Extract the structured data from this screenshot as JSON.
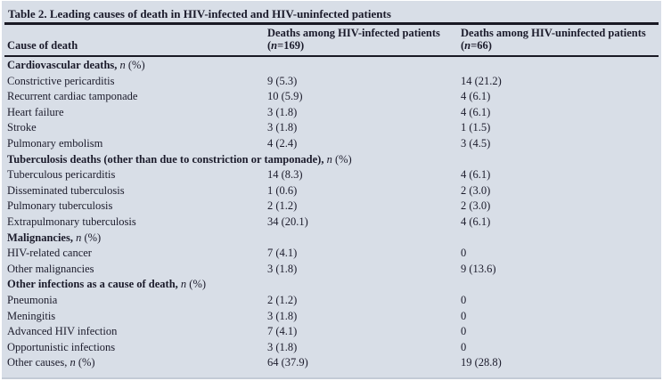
{
  "colors": {
    "panel_bg": "#d8dee7",
    "text": "#1b1b2b",
    "rule": "#191924"
  },
  "table": {
    "title": "Table 2. Leading causes of death in HIV-infected and HIV-uninfected patients",
    "columns": {
      "cause": "Cause of death",
      "infected": {
        "line1": "Deaths among HIV-infected patients",
        "pre": "(",
        "n": "n",
        "post": "=169)"
      },
      "uninfected": {
        "line1": "Deaths among HIV-uninfected patients",
        "pre": "(",
        "n": "n",
        "post": "=66)"
      }
    },
    "rows": [
      {
        "type": "section",
        "pre": "Cardiovascular deaths, ",
        "n": "n",
        "post": " (%)",
        "infected": "",
        "uninfected": ""
      },
      {
        "type": "data",
        "pre": "Constrictive pericarditis",
        "infected": "9 (5.3)",
        "uninfected": "14 (21.2)"
      },
      {
        "type": "data",
        "pre": "Recurrent cardiac tamponade",
        "infected": "10 (5.9)",
        "uninfected": "4 (6.1)"
      },
      {
        "type": "data",
        "pre": "Heart failure",
        "infected": "3 (1.8)",
        "uninfected": "4 (6.1)"
      },
      {
        "type": "data",
        "pre": "Stroke",
        "infected": "3 (1.8)",
        "uninfected": "1 (1.5)"
      },
      {
        "type": "data",
        "pre": "Pulmonary embolism",
        "infected": "4 (2.4)",
        "uninfected": "3 (4.5)"
      },
      {
        "type": "section",
        "pre": "Tuberculosis deaths (other than due to constriction or tamponade), ",
        "n": "n",
        "post": " (%)",
        "infected": "",
        "uninfected": ""
      },
      {
        "type": "data",
        "pre": "Tuberculous pericarditis",
        "infected": "14 (8.3)",
        "uninfected": "4 (6.1)"
      },
      {
        "type": "data",
        "pre": "Disseminated tuberculosis",
        "infected": "1 (0.6)",
        "uninfected": "2 (3.0)"
      },
      {
        "type": "data",
        "pre": "Pulmonary tuberculosis",
        "infected": "2 (1.2)",
        "uninfected": "2 (3.0)"
      },
      {
        "type": "data",
        "pre": "Extrapulmonary tuberculosis",
        "infected": "34 (20.1)",
        "uninfected": "4 (6.1)"
      },
      {
        "type": "section",
        "pre": "Malignancies, ",
        "n": "n",
        "post": " (%)",
        "infected": "",
        "uninfected": ""
      },
      {
        "type": "data",
        "pre": "HIV-related cancer",
        "infected": "7 (4.1)",
        "uninfected": "0"
      },
      {
        "type": "data",
        "pre": "Other malignancies",
        "infected": "3 (1.8)",
        "uninfected": "9 (13.6)"
      },
      {
        "type": "section",
        "pre": "Other infections as a cause of death, ",
        "n": "n",
        "post": " (%)",
        "infected": "",
        "uninfected": ""
      },
      {
        "type": "data",
        "pre": "Pneumonia",
        "infected": "2 (1.2)",
        "uninfected": "0"
      },
      {
        "type": "data",
        "pre": "Meningitis",
        "infected": "3 (1.8)",
        "uninfected": "0"
      },
      {
        "type": "data",
        "pre": "Advanced HIV infection",
        "infected": "7 (4.1)",
        "uninfected": "0"
      },
      {
        "type": "data",
        "pre": "Opportunistic infections",
        "infected": "3 (1.8)",
        "uninfected": "0"
      },
      {
        "type": "data",
        "pre": "Other causes, ",
        "n": "n",
        "post": " (%)",
        "infected": "64 (37.9)",
        "uninfected": "19 (28.8)"
      }
    ]
  }
}
